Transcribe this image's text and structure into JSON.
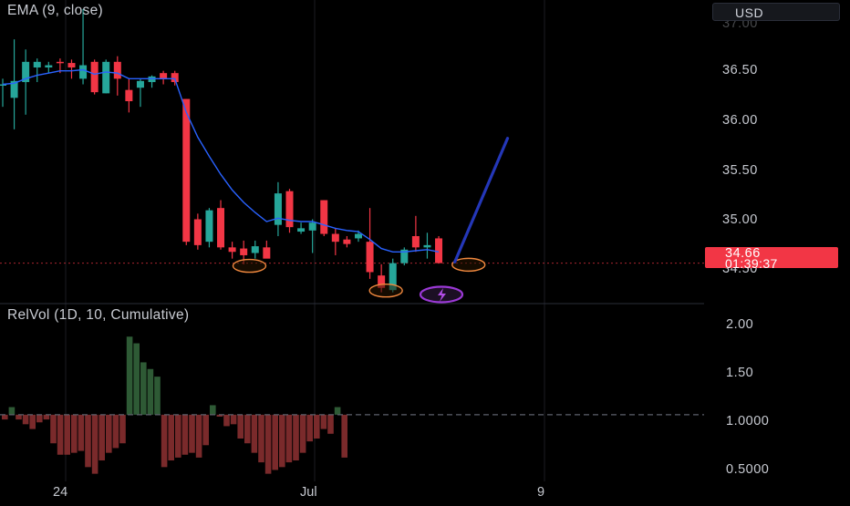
{
  "price_pane": {
    "indicator_label": "EMA (9, close)",
    "currency_label": "USD",
    "last_price": "34.66",
    "countdown": "01:39:37",
    "price_labels": [
      "36.50",
      "36.00",
      "35.50",
      "35.00",
      "34.50"
    ]
  },
  "volume_pane": {
    "indicator_label": "RelVol (1D, 10, Cumulative)",
    "scale_labels": [
      "2.00",
      "1.50",
      "1.0000",
      "0.5000"
    ]
  },
  "x_axis": {
    "labels": [
      "24",
      "Jul",
      "9"
    ]
  },
  "colors": {
    "up": "#26a69a",
    "down": "#f23645",
    "ema": "#2962ff",
    "projection": "#2437b8",
    "marker": "#f0883e",
    "vol_up": "#2e5a35",
    "vol_down": "#7a2a2b",
    "grid": "#1b1d22"
  },
  "icons": {
    "event_marker": "lightning-icon"
  },
  "chart_data": [
    {
      "type": "candlestick",
      "title": "",
      "ylim": [
        34.3,
        37.0
      ],
      "candles": [
        {
          "o": 36.24,
          "h": 36.3,
          "l": 36.05,
          "c": 36.25
        },
        {
          "o": 36.13,
          "h": 36.65,
          "l": 35.85,
          "c": 36.28
        },
        {
          "o": 36.27,
          "h": 36.56,
          "l": 35.98,
          "c": 36.45
        },
        {
          "o": 36.4,
          "h": 36.48,
          "l": 36.27,
          "c": 36.45
        },
        {
          "o": 36.4,
          "h": 36.45,
          "l": 36.35,
          "c": 36.42
        },
        {
          "o": 36.45,
          "h": 36.48,
          "l": 36.35,
          "c": 36.44
        },
        {
          "o": 36.44,
          "h": 36.47,
          "l": 36.3,
          "c": 36.4
        },
        {
          "o": 36.3,
          "h": 36.92,
          "l": 36.25,
          "c": 36.42
        },
        {
          "o": 36.45,
          "h": 36.47,
          "l": 36.16,
          "c": 36.18
        },
        {
          "o": 36.17,
          "h": 36.47,
          "l": 36.17,
          "c": 36.45
        },
        {
          "o": 36.45,
          "h": 36.5,
          "l": 36.15,
          "c": 36.3
        },
        {
          "o": 36.2,
          "h": 36.3,
          "l": 36.0,
          "c": 36.1
        },
        {
          "o": 36.22,
          "h": 36.3,
          "l": 36.05,
          "c": 36.28
        },
        {
          "o": 36.27,
          "h": 36.33,
          "l": 36.22,
          "c": 36.32
        },
        {
          "o": 36.35,
          "h": 36.37,
          "l": 36.25,
          "c": 36.3
        },
        {
          "o": 36.35,
          "h": 36.37,
          "l": 36.24,
          "c": 36.27
        },
        {
          "o": 36.12,
          "h": 36.12,
          "l": 34.82,
          "c": 34.85
        },
        {
          "o": 35.05,
          "h": 35.1,
          "l": 34.78,
          "c": 34.82
        },
        {
          "o": 34.85,
          "h": 35.15,
          "l": 34.8,
          "c": 35.13
        },
        {
          "o": 35.15,
          "h": 35.22,
          "l": 34.78,
          "c": 34.8
        },
        {
          "o": 34.8,
          "h": 34.85,
          "l": 34.7,
          "c": 34.76
        },
        {
          "o": 34.79,
          "h": 34.86,
          "l": 34.65,
          "c": 34.73
        },
        {
          "o": 34.75,
          "h": 34.86,
          "l": 34.7,
          "c": 34.81
        },
        {
          "o": 34.8,
          "h": 34.86,
          "l": 34.72,
          "c": 34.7
        },
        {
          "o": 35.0,
          "h": 35.38,
          "l": 34.9,
          "c": 35.28
        },
        {
          "o": 35.3,
          "h": 35.32,
          "l": 34.93,
          "c": 34.98
        },
        {
          "o": 34.94,
          "h": 35.02,
          "l": 34.92,
          "c": 34.97
        },
        {
          "o": 34.95,
          "h": 35.05,
          "l": 34.75,
          "c": 35.02
        },
        {
          "o": 35.22,
          "h": 35.22,
          "l": 34.9,
          "c": 34.92
        },
        {
          "o": 34.92,
          "h": 34.97,
          "l": 34.73,
          "c": 34.85
        },
        {
          "o": 34.87,
          "h": 34.9,
          "l": 34.8,
          "c": 34.83
        },
        {
          "o": 34.88,
          "h": 34.95,
          "l": 34.85,
          "c": 34.92
        },
        {
          "o": 34.85,
          "h": 35.15,
          "l": 34.52,
          "c": 34.58
        },
        {
          "o": 34.55,
          "h": 34.65,
          "l": 34.4,
          "c": 34.44
        },
        {
          "o": 34.42,
          "h": 34.7,
          "l": 34.4,
          "c": 34.66
        },
        {
          "o": 34.66,
          "h": 34.8,
          "l": 34.64,
          "c": 34.78
        },
        {
          "o": 34.9,
          "h": 35.08,
          "l": 34.76,
          "c": 34.8
        },
        {
          "o": 34.8,
          "h": 34.93,
          "l": 34.7,
          "c": 34.82
        },
        {
          "o": 34.88,
          "h": 34.9,
          "l": 34.66,
          "c": 34.66
        }
      ],
      "ema": [
        36.25,
        36.26,
        36.3,
        36.33,
        36.35,
        36.37,
        36.37,
        36.38,
        36.34,
        36.36,
        36.35,
        36.3,
        36.3,
        36.3,
        36.3,
        36.3,
        36.0,
        35.78,
        35.61,
        35.45,
        35.31,
        35.2,
        35.11,
        35.03,
        35.06,
        35.04,
        35.03,
        35.03,
        35.0,
        34.97,
        34.95,
        34.94,
        34.87,
        34.79,
        34.76,
        34.76,
        34.77,
        34.78,
        34.76
      ],
      "projection": [
        {
          "bar": 39.4,
          "y": 34.67
        },
        {
          "bar": 44.0,
          "y": 35.77
        }
      ],
      "highlight_markers": [
        {
          "bar": 21.5,
          "y": 34.66
        },
        {
          "bar": 33.4,
          "y": 34.44
        },
        {
          "bar": 40.6,
          "y": 34.67
        }
      ]
    },
    {
      "type": "bar",
      "title": "",
      "reference_line": 1.0,
      "ylim": [
        0.3,
        2.1
      ],
      "values": [
        0.95,
        1.08,
        0.95,
        0.9,
        0.85,
        0.92,
        0.95,
        0.7,
        0.58,
        0.58,
        0.6,
        0.62,
        0.45,
        0.38,
        0.52,
        0.6,
        0.65,
        0.7,
        1.82,
        1.75,
        1.55,
        1.48,
        1.4,
        0.45,
        0.52,
        0.55,
        0.58,
        0.6,
        0.55,
        0.68,
        1.1,
        0.98,
        0.88,
        0.9,
        0.75,
        0.7,
        0.6,
        0.5,
        0.38,
        0.42,
        0.45,
        0.5,
        0.52,
        0.6,
        0.72,
        0.75,
        0.85,
        0.8,
        1.08,
        0.55
      ]
    }
  ]
}
